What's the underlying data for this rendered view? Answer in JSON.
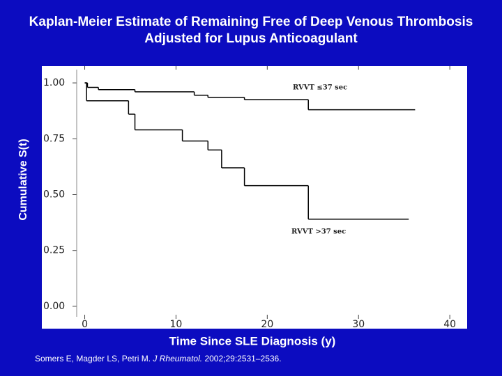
{
  "chart_data": {
    "type": "step",
    "title": "Kaplan-Meier Estimate of Remaining Free of Deep Venous Thrombosis Adjusted for Lupus Anticoagulant",
    "x_label": "Time Since SLE Diagnosis (y)",
    "y_label": "Cumulative S(t)",
    "xlim": [
      -4.7,
      41.9
    ],
    "ylim": [
      -0.1,
      1.075
    ],
    "xticks": [
      0,
      10,
      20,
      30,
      40
    ],
    "yticks": [
      {
        "value": 0,
        "label": "0.00"
      },
      {
        "value": 0.25,
        "label": "0.25"
      },
      {
        "value": 0.5,
        "label": "0.50"
      },
      {
        "value": 0.75,
        "label": "0.75"
      },
      {
        "value": 1,
        "label": "1.00"
      }
    ],
    "series": [
      {
        "name": "RVVT ≤37 sec",
        "color": "#000000",
        "x": [
          0,
          0.3,
          1.5,
          5.5,
          12,
          13.5,
          17.5,
          24.5,
          36.2
        ],
        "values": [
          1,
          0.98,
          0.97,
          0.96,
          0.945,
          0.935,
          0.925,
          0.88,
          0.88
        ]
      },
      {
        "name": "RVVT >37 sec",
        "color": "#000000",
        "x": [
          0,
          0.2,
          4.8,
          5.5,
          10.7,
          13.5,
          15,
          17.5,
          24.5,
          35.5
        ],
        "values": [
          1,
          0.92,
          0.86,
          0.79,
          0.74,
          0.7,
          0.62,
          0.54,
          0.39,
          0.39
        ]
      }
    ],
    "source": {
      "authors": "Somers E, Magder LS, Petri M.",
      "journal": "J Rheumatol.",
      "details": "2002;29:2531–2536."
    }
  }
}
